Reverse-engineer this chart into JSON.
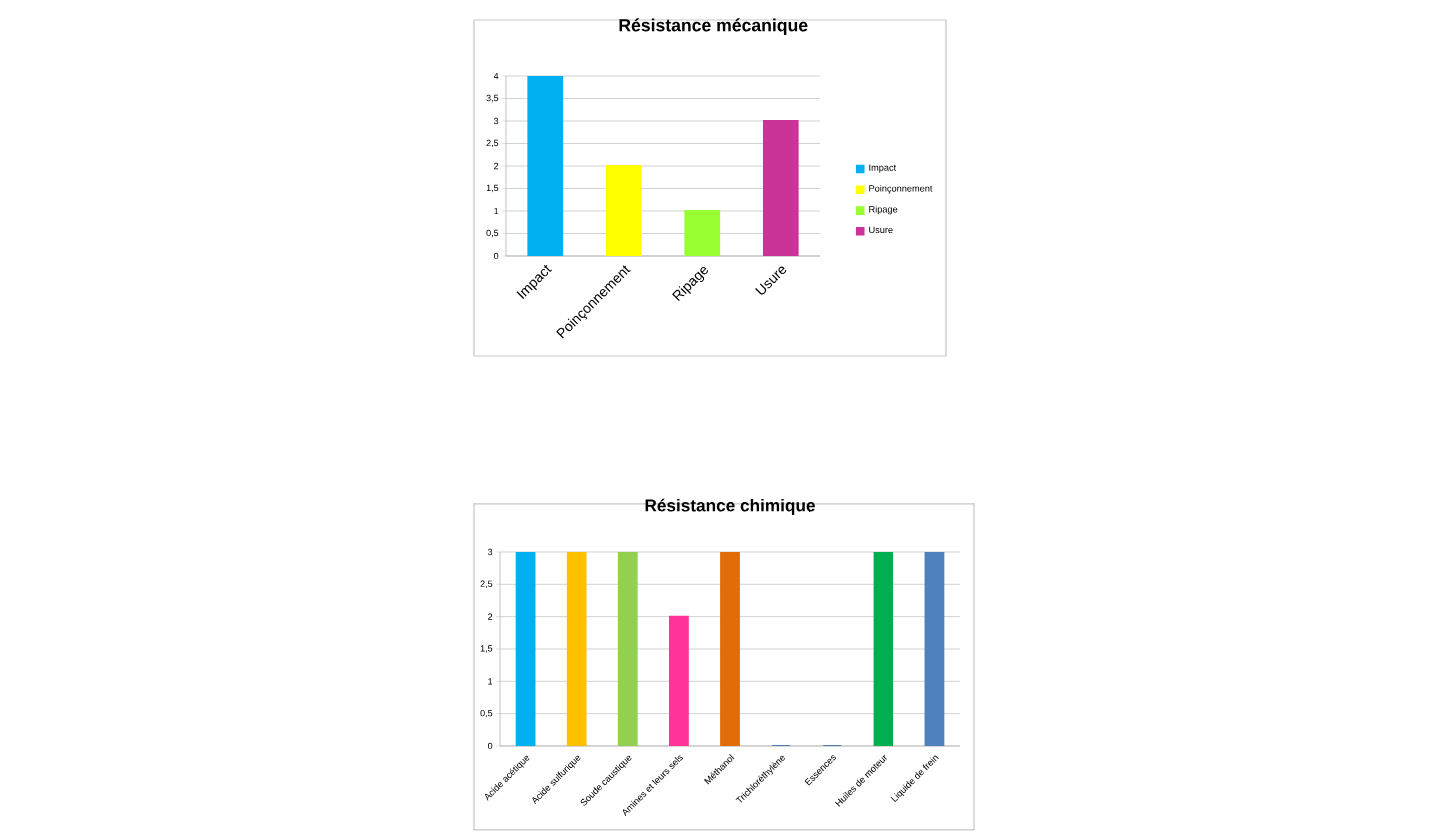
{
  "chart_data": [
    {
      "type": "bar",
      "title": "Résistance mécanique",
      "categories": [
        "Impact",
        "Poinçonnement",
        "Ripage",
        "Usure"
      ],
      "stacked": true,
      "series": [
        {
          "name": "Impact",
          "color": "#00b0f0",
          "values": [
            4,
            null,
            null,
            null
          ]
        },
        {
          "name": "Poinçonnement",
          "color": "#ffff00",
          "values": [
            null,
            2,
            null,
            null
          ]
        },
        {
          "name": "Ripage",
          "color": "#99ff33",
          "values": [
            null,
            null,
            1,
            null
          ]
        },
        {
          "name": "Usure",
          "color": "#cc3399",
          "values": [
            null,
            null,
            null,
            3
          ]
        }
      ],
      "ylim": [
        0,
        4
      ],
      "yticks": [
        0,
        {
          "value": 0.5,
          "label": "0,5"
        },
        1,
        {
          "value": 1.5,
          "label": "1,5"
        },
        2,
        {
          "value": 2.5,
          "label": "2,5"
        },
        3,
        {
          "value": 3.5,
          "label": "3,5"
        },
        4
      ],
      "grid": "y",
      "legend": "right"
    },
    {
      "type": "bar",
      "title": "Résistance chimique",
      "categories": [
        "Acide acétique",
        "Acide sulfurique",
        "Soude caustique",
        "Amines et leurs sels",
        "Méthanol",
        "Trichloréthylène",
        "Essences",
        "Huiles de moteur",
        "Liquide de frein"
      ],
      "values": [
        3,
        3,
        3,
        2,
        3,
        0,
        0,
        3,
        3
      ],
      "colors": [
        "#00b0f0",
        "#ffc000",
        "#92d050",
        "#ff3399",
        "#e36c0a",
        "#4f81bd",
        "#4f81bd",
        "#00b050",
        "#4f81bd"
      ],
      "ylim": [
        0,
        3
      ],
      "yticks": [
        0,
        {
          "value": 0.5,
          "label": "0,5"
        },
        1,
        {
          "value": 1.5,
          "label": "1,5"
        },
        2,
        {
          "value": 2.5,
          "label": "2,5"
        },
        3
      ],
      "grid": "y"
    }
  ]
}
